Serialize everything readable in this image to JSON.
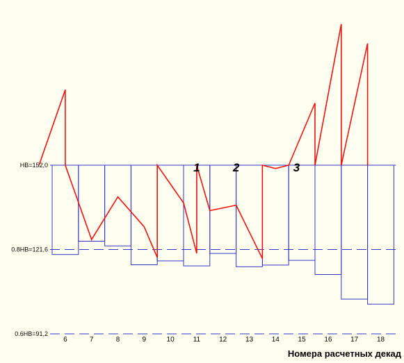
{
  "chart_data": {
    "type": "line",
    "xlabel": "Номера расчетных декад",
    "x_ticks": [
      "6",
      "7",
      "8",
      "9",
      "10",
      "11",
      "12",
      "13",
      "14",
      "15",
      "16",
      "17",
      "18"
    ],
    "levels": [
      {
        "label": "HB=152,0",
        "value": 152.0,
        "style": "solid"
      },
      {
        "label": "0.8HB=121,6",
        "value": 121.6,
        "style": "dashed"
      },
      {
        "label": "0.6HB=91,2",
        "value": 91.2,
        "style": "dashed"
      }
    ],
    "ylim": [
      91.2,
      152.0
    ],
    "series": [
      {
        "name": "",
        "color": "#3333cc",
        "bars": [
          {
            "decade": 6,
            "value": 119.8
          },
          {
            "decade": 7,
            "value": 124.6
          },
          {
            "decade": 8,
            "value": 122.9
          },
          {
            "decade": 9,
            "value": 116.1
          },
          {
            "decade": 10,
            "value": 117.5
          },
          {
            "decade": 11,
            "value": 115.7
          },
          {
            "decade": 12,
            "value": 120.2
          },
          {
            "decade": 13,
            "value": 115.4
          },
          {
            "decade": 14,
            "value": 116.0
          },
          {
            "decade": 15,
            "value": 117.7
          },
          {
            "decade": 16,
            "value": 112.6
          },
          {
            "decade": 17,
            "value": 103.7
          },
          {
            "decade": 18,
            "value": 101.9
          }
        ]
      },
      {
        "name": "",
        "color": "#ee1111",
        "points": [
          [
            5.5,
            152.0
          ],
          [
            6.5,
            179.2
          ],
          [
            6.5,
            152.0
          ],
          [
            7.5,
            125.2
          ],
          [
            8.5,
            140.6
          ],
          [
            9.5,
            129.8
          ],
          [
            10.0,
            118.7
          ],
          [
            10.0,
            152.0
          ],
          [
            11.0,
            138.4
          ],
          [
            11.5,
            120.2
          ],
          [
            11.5,
            152.0
          ],
          [
            12.0,
            135.6
          ],
          [
            13.0,
            137.6
          ],
          [
            14.0,
            118.3
          ],
          [
            14.0,
            152.0
          ],
          [
            14.5,
            150.8
          ],
          [
            15.0,
            152.0
          ],
          [
            16.0,
            174.4
          ],
          [
            16.0,
            152.0
          ],
          [
            17.0,
            202.9
          ],
          [
            17.0,
            152.0
          ],
          [
            18.0,
            195.9
          ],
          [
            18.0,
            152.0
          ]
        ]
      }
    ],
    "annotations": [
      {
        "text": "1",
        "decade": 11
      },
      {
        "text": "2",
        "decade": 12.5
      },
      {
        "text": "3",
        "decade": 14.8
      }
    ]
  }
}
